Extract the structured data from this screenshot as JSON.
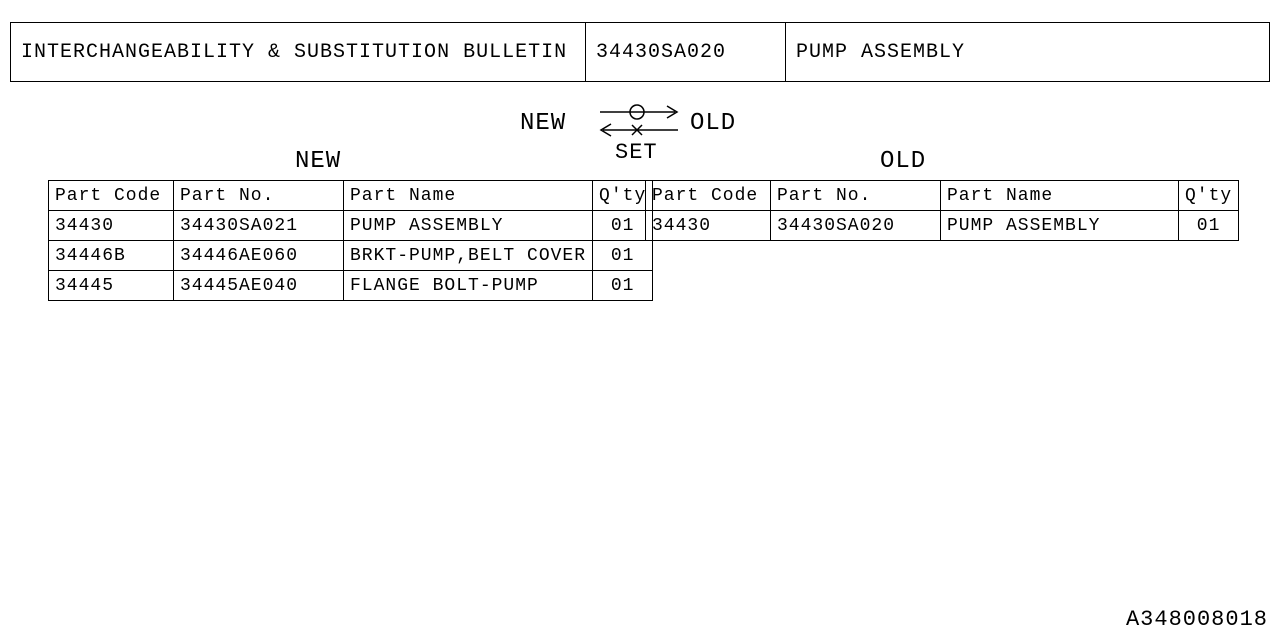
{
  "header": {
    "title": "INTERCHANGEABILITY & SUBSTITUTION BULLETIN",
    "partNumber": "34430SA020",
    "partName": "PUMP ASSEMBLY"
  },
  "arrowBlock": {
    "leftLabel": "NEW",
    "rightLabel": "OLD",
    "bottomLabel": "SET"
  },
  "sections": {
    "newLabel": "NEW",
    "oldLabel": "OLD"
  },
  "tableHeaders": {
    "partCode": "Part Code",
    "partNo": "Part No.",
    "partName": "Part Name",
    "qty": "Q'ty"
  },
  "newTable": {
    "rows": [
      {
        "code": "34430",
        "no": "34430SA021",
        "name": "PUMP ASSEMBLY",
        "qty": "01"
      },
      {
        "code": "34446B",
        "no": "34446AE060",
        "name": "BRKT-PUMP,BELT COVER",
        "qty": "01"
      },
      {
        "code": "34445",
        "no": "34445AE040",
        "name": "FLANGE BOLT-PUMP",
        "qty": "01"
      }
    ]
  },
  "oldTable": {
    "rows": [
      {
        "code": "34430",
        "no": "34430SA020",
        "name": "PUMP ASSEMBLY",
        "qty": "01"
      }
    ]
  },
  "docId": "A348008018",
  "style": {
    "pageWidth": 1280,
    "pageHeight": 640,
    "background": "#ffffff",
    "lineColor": "#000000",
    "textColor": "#000000",
    "fontFamily": "Courier New, monospace",
    "headerFontSize": 20,
    "labelFontSize": 24,
    "tableFontSize": 18,
    "docIdFontSize": 22,
    "borderWidth": 1.5
  }
}
